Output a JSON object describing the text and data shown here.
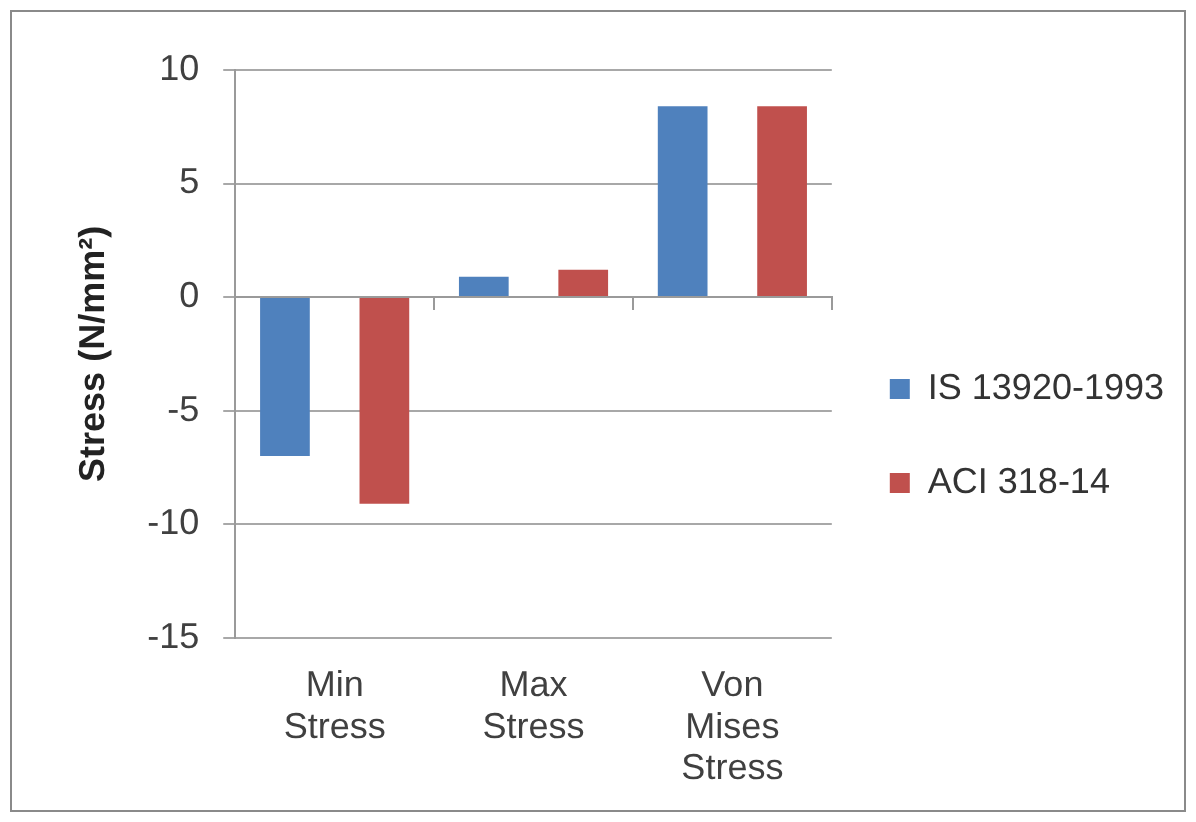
{
  "chart_data": {
    "type": "bar",
    "categories": [
      "Min Stress",
      "Max Stress",
      "Von Mises Stress"
    ],
    "series": [
      {
        "name": "IS 13920-1993",
        "color": "#4f81bd",
        "values": [
          -7,
          0.9,
          8.4
        ]
      },
      {
        "name": "ACI 318-14",
        "color": "#c0504d",
        "values": [
          -9.1,
          1.2,
          8.4
        ]
      }
    ],
    "ylabel": "Stress (N/mm²)",
    "ylim": [
      -15,
      10
    ],
    "yticks": [
      -15,
      -10,
      -5,
      0,
      5,
      10
    ],
    "grid": "y",
    "legend": "right"
  }
}
